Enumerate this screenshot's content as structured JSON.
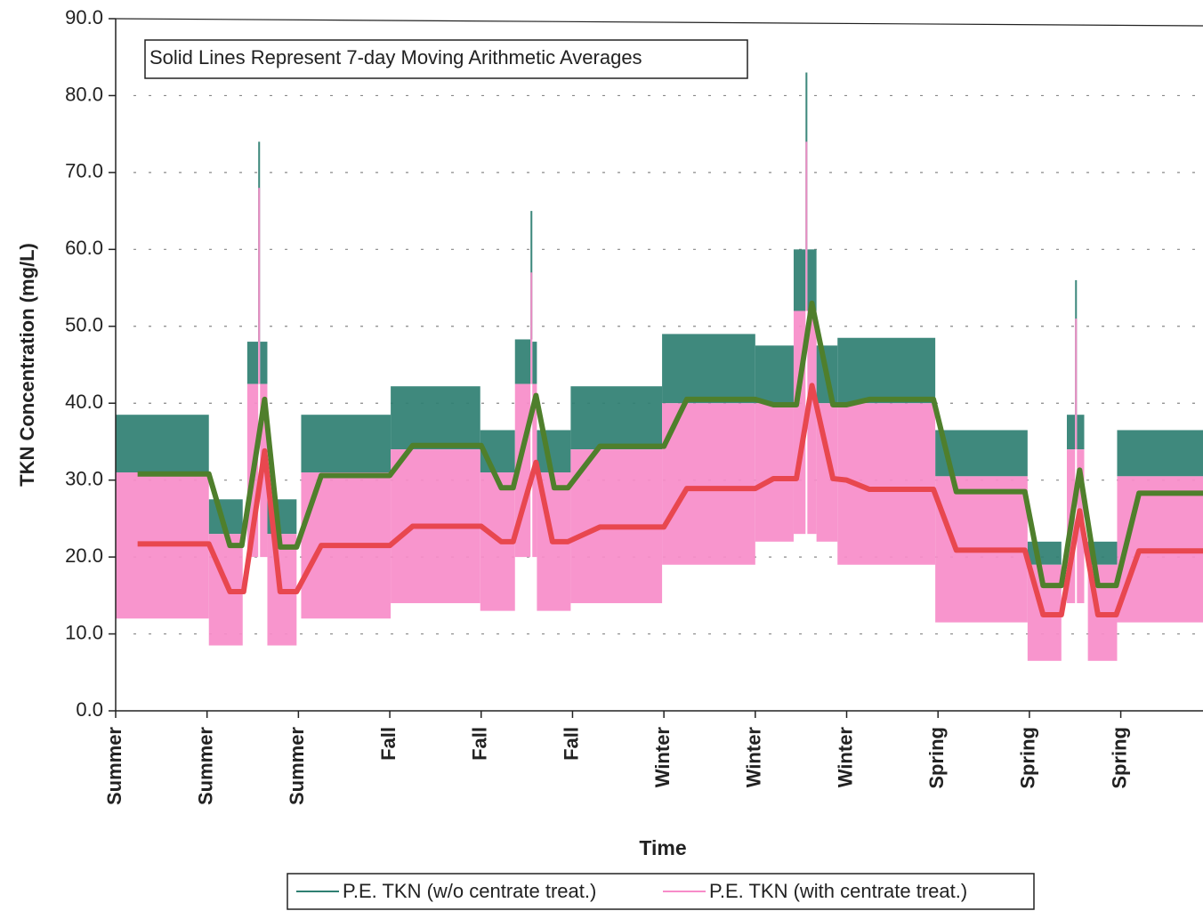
{
  "chart_data": {
    "type": "range_band",
    "annotation": "Solid Lines Represent 7-day Moving Arithmetic Averages",
    "ylabel": "TKN Concentration (mg/L)",
    "xlabel": "Time",
    "ylim": [
      0,
      90
    ],
    "yticks": [
      {
        "value": 0,
        "label": "0.0"
      },
      {
        "value": 10,
        "label": "10.0"
      },
      {
        "value": 20,
        "label": "20.0"
      },
      {
        "value": 30,
        "label": "30.0"
      },
      {
        "value": 40,
        "label": "40.0"
      },
      {
        "value": 50,
        "label": "50.0"
      },
      {
        "value": 60,
        "label": "60.0"
      },
      {
        "value": 70,
        "label": "70.0"
      },
      {
        "value": 80,
        "label": "80.0"
      },
      {
        "value": 90,
        "label": "90.0"
      }
    ],
    "xlim": [
      0,
      11.9
    ],
    "xticks": [
      {
        "value": 0,
        "label": "Summer"
      },
      {
        "value": 1,
        "label": "Summer"
      },
      {
        "value": 2,
        "label": "Summer"
      },
      {
        "value": 3,
        "label": "Fall"
      },
      {
        "value": 4,
        "label": "Fall"
      },
      {
        "value": 5,
        "label": "Fall"
      },
      {
        "value": 6,
        "label": "Winter"
      },
      {
        "value": 7,
        "label": "Winter"
      },
      {
        "value": 8,
        "label": "Winter"
      },
      {
        "value": 9,
        "label": "Spring"
      },
      {
        "value": 10,
        "label": "Spring"
      },
      {
        "value": 11,
        "label": "Spring"
      }
    ],
    "grid": true,
    "bins": [
      0,
      1.02,
      1.39,
      1.44,
      1.56,
      1.58,
      1.66,
      1.98,
      2.03,
      3.01,
      3.99,
      4.37,
      4.54,
      4.56,
      4.61,
      4.98,
      5.98,
      7.0,
      7.42,
      7.55,
      7.57,
      7.67,
      7.9,
      8.97,
      9.98,
      10.35,
      10.41,
      10.5,
      10.52,
      10.6,
      10.64,
      10.96,
      11.9
    ],
    "series": [
      {
        "name": "P.E. TKN (w/o centrate treat.)",
        "color": "#2f7f72",
        "low": [
          31,
          23,
          null,
          42.5,
          48,
          42.5,
          23,
          null,
          31,
          34,
          31,
          42.5,
          48.3,
          42.5,
          31,
          34,
          40,
          40,
          52,
          60,
          52,
          40,
          40,
          30.5,
          19,
          null,
          34,
          38.5,
          34,
          null,
          19,
          30.5
        ],
        "high": [
          38.5,
          27.5,
          null,
          48,
          74,
          48,
          27.5,
          null,
          38.5,
          42.2,
          36.5,
          48.3,
          65,
          48,
          36.5,
          42.2,
          49,
          47.5,
          60,
          83,
          60,
          47.5,
          48.5,
          36.5,
          22,
          null,
          38.5,
          56,
          38.5,
          null,
          22,
          36.5
        ],
        "moving_average": {
          "color": "#4f7f2c",
          "x": [
            0.24,
            1.02,
            1.25,
            1.38,
            1.63,
            1.8,
            1.98,
            2.25,
            3.0,
            3.25,
            4.0,
            4.22,
            4.35,
            4.6,
            4.8,
            4.95,
            5.3,
            6.0,
            6.25,
            7.0,
            7.2,
            7.45,
            7.62,
            7.85,
            8.0,
            8.25,
            8.95,
            9.2,
            9.95,
            10.15,
            10.35,
            10.55,
            10.75,
            10.95,
            11.2,
            11.9
          ],
          "values": [
            30.8,
            30.8,
            21.5,
            21.5,
            40.5,
            21.3,
            21.3,
            30.6,
            30.6,
            34.5,
            34.5,
            29,
            29,
            41,
            29,
            29,
            34.4,
            34.4,
            40.5,
            40.5,
            39.8,
            39.8,
            53,
            39.8,
            39.8,
            40.5,
            40.5,
            28.5,
            28.5,
            16.3,
            16.3,
            31.3,
            16.3,
            16.3,
            28.3,
            28.3
          ]
        }
      },
      {
        "name": "P.E. TKN (with centrate treat.)",
        "color": "#f78cc9",
        "low": [
          12,
          8.5,
          null,
          20,
          42.5,
          20,
          8.5,
          null,
          12,
          14,
          13,
          20,
          42.5,
          20,
          13,
          14,
          19,
          22,
          23,
          52,
          23,
          22,
          19,
          11.5,
          6.5,
          null,
          14,
          34,
          14,
          null,
          6.5,
          11.5
        ],
        "high": [
          31,
          23,
          null,
          42.5,
          68,
          42.5,
          23,
          null,
          31,
          34,
          31,
          42.5,
          57,
          42.5,
          31,
          34,
          40,
          40,
          52,
          74,
          52,
          40,
          40,
          30.5,
          19,
          null,
          34,
          51,
          34,
          null,
          19,
          30.5
        ],
        "moving_average": {
          "color": "#e8474f",
          "x": [
            0.24,
            1.02,
            1.25,
            1.4,
            1.63,
            1.8,
            1.98,
            2.25,
            3.0,
            3.25,
            4.0,
            4.22,
            4.35,
            4.6,
            4.78,
            4.95,
            5.3,
            6.0,
            6.25,
            7.0,
            7.2,
            7.45,
            7.62,
            7.85,
            8.0,
            8.25,
            8.95,
            9.2,
            9.95,
            10.15,
            10.35,
            10.55,
            10.75,
            10.95,
            11.2,
            11.9
          ],
          "values": [
            21.7,
            21.7,
            15.5,
            15.5,
            33.8,
            15.5,
            15.5,
            21.5,
            21.5,
            24,
            24,
            22,
            22,
            32.3,
            22,
            22,
            23.9,
            23.9,
            28.9,
            28.9,
            30.2,
            30.2,
            42.3,
            30.2,
            30,
            28.8,
            28.8,
            20.9,
            20.9,
            12.5,
            12.5,
            26,
            12.5,
            12.5,
            20.8,
            20.8
          ]
        }
      }
    ]
  }
}
